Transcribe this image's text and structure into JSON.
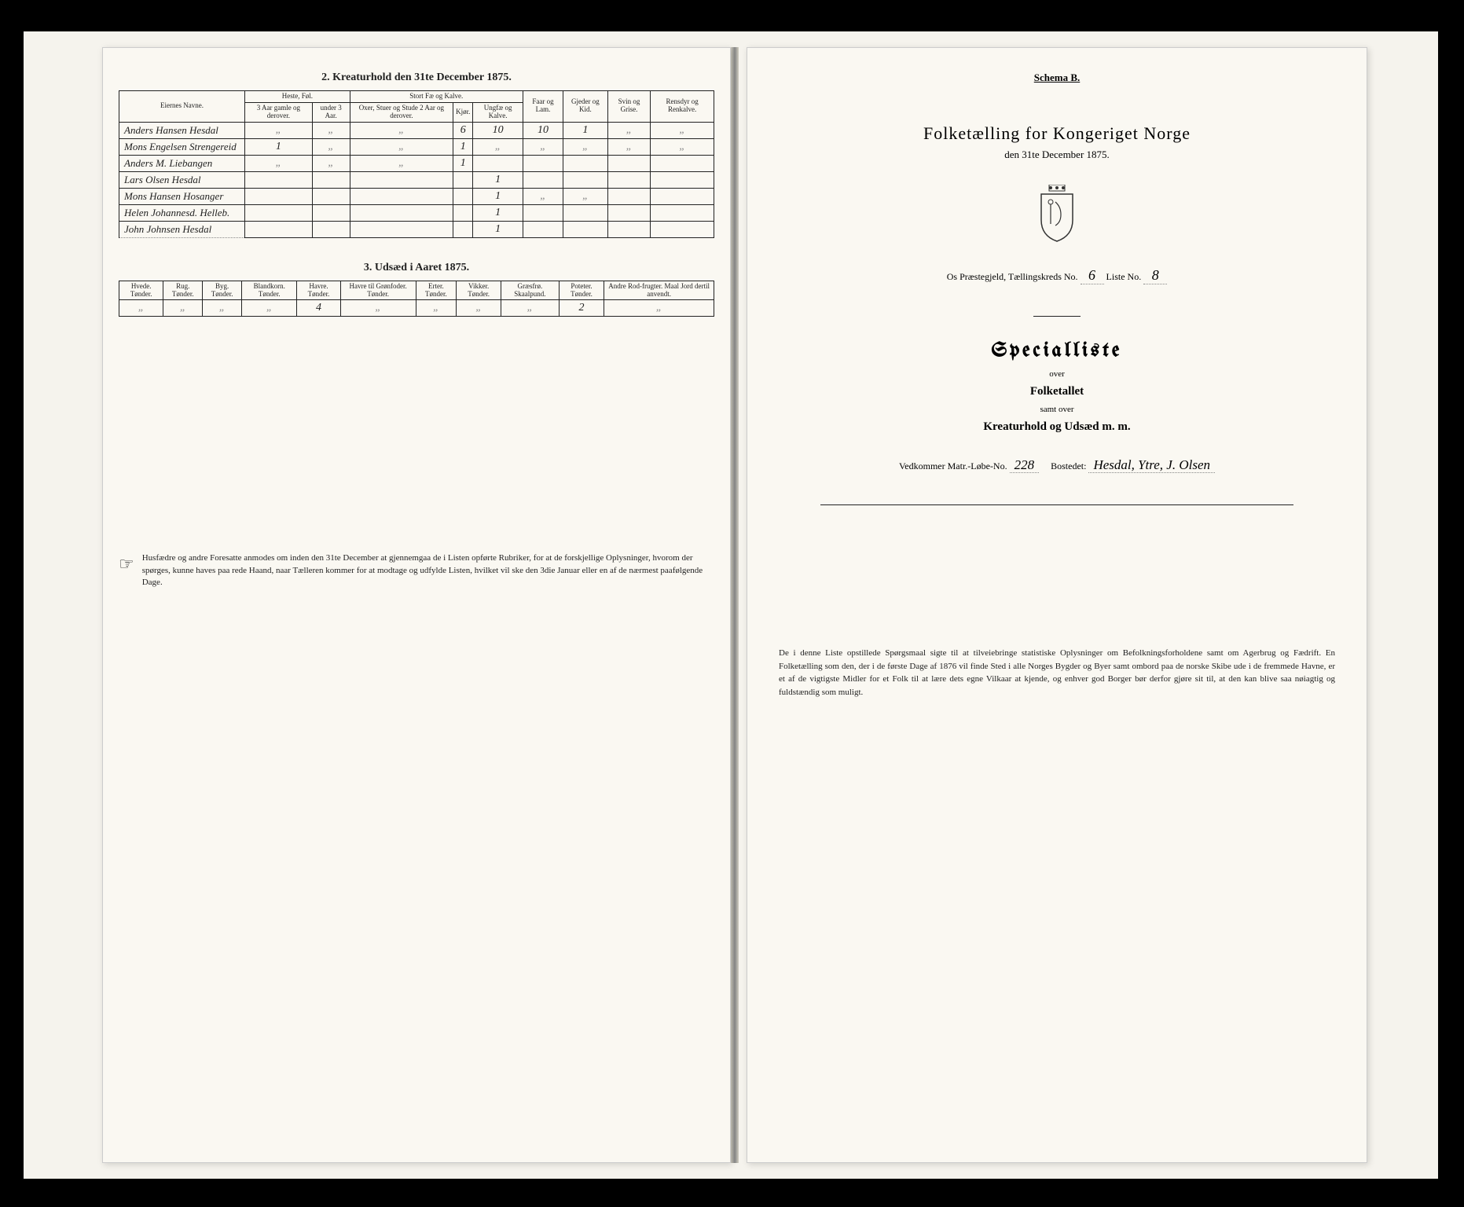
{
  "left": {
    "section2_title": "2. Kreaturhold den 31te December 1875.",
    "table2": {
      "headers": {
        "name": "Eiernes Navne.",
        "group_heste": "Heste, Føl.",
        "heste_a": "3 Aar gamle og derover.",
        "heste_b": "under 3 Aar.",
        "group_fae": "Stort Fæ og Kalve.",
        "fae_a": "Oxer, Stuer og Stude 2 Aar og derover.",
        "fae_b": "Kjør.",
        "fae_c": "Ungfæ og Kalve.",
        "faar": "Faar og Lam.",
        "gjeder": "Gjeder og Kid.",
        "svin": "Svin og Grise.",
        "ren": "Rensdyr og Renkalve."
      },
      "rows": [
        {
          "name": "Anders Hansen Hesdal",
          "h1": "„",
          "h2": "„",
          "f1": "„",
          "f2": "6",
          "f3": "10",
          "faar": "10",
          "gj": "1",
          "sv": "„",
          "ren": "„"
        },
        {
          "name": "Mons Engelsen Strengereid",
          "h1": "1",
          "h2": "„",
          "f1": "„",
          "f2": "1",
          "f3": "„",
          "faar": "„",
          "gj": "„",
          "sv": "„",
          "ren": "„"
        },
        {
          "name": "Anders M. Liebangen",
          "h1": "„",
          "h2": "„",
          "f1": "„",
          "f2": "1",
          "f3": "",
          "faar": "",
          "gj": "",
          "sv": "",
          "ren": ""
        },
        {
          "name": "Lars Olsen Hesdal",
          "h1": "",
          "h2": "",
          "f1": "",
          "f2": "",
          "f3": "1",
          "faar": "",
          "gj": "",
          "sv": "",
          "ren": ""
        },
        {
          "name": "Mons Hansen Hosanger",
          "h1": "",
          "h2": "",
          "f1": "",
          "f2": "",
          "f3": "1",
          "faar": "„",
          "gj": "„",
          "sv": "",
          "ren": ""
        },
        {
          "name": "Helen Johannesd. Helleb.",
          "h1": "",
          "h2": "",
          "f1": "",
          "f2": "",
          "f3": "1",
          "faar": "",
          "gj": "",
          "sv": "",
          "ren": ""
        },
        {
          "name": "John Johnsen Hesdal",
          "h1": "",
          "h2": "",
          "f1": "",
          "f2": "",
          "f3": "1",
          "faar": "",
          "gj": "",
          "sv": "",
          "ren": ""
        }
      ]
    },
    "section3_title": "3. Udsæd i Aaret 1875.",
    "table3": {
      "headers": [
        "Hvede. Tønder.",
        "Rug. Tønder.",
        "Byg. Tønder.",
        "Blandkorn. Tønder.",
        "Havre. Tønder.",
        "Havre til Grønfoder. Tønder.",
        "Erter. Tønder.",
        "Vikker. Tønder.",
        "Græsfrø. Skaalpund.",
        "Poteter. Tønder.",
        "Andre Rod-frugter. Maal Jord dertil anvendt."
      ],
      "row": [
        "„",
        "„",
        "„",
        "„",
        "4",
        "„",
        "„",
        "„",
        "„",
        "2",
        "„"
      ]
    },
    "footer": "Husfædre og andre Foresatte anmodes om inden den 31te December at gjennemgaa de i Listen opførte Rubriker, for at de forskjellige Oplysninger, hvorom der spørges, kunne haves paa rede Haand, naar Tælleren kommer for at modtage og udfylde Listen, hvilket vil ske den 3die Januar eller en af de nærmest paafølgende Dage."
  },
  "right": {
    "schema": "Schema B.",
    "title": "Folketælling for Kongeriget Norge",
    "date": "den 31te December 1875.",
    "line_prefix": "Os Præstegjeld, Tællingskreds No.",
    "kreds_no": "6",
    "liste_label": "Liste No.",
    "liste_no": "8",
    "spec_title": "Specialliste",
    "over": "over",
    "folketallet": "Folketallet",
    "samt": "samt over",
    "kreatur": "Kreaturhold og Udsæd m. m.",
    "matr_label": "Vedkommer Matr.-Løbe-No.",
    "matr_no": "228",
    "bosted_label": "Bostedet:",
    "bosted": "Hesdal, Ytre, J. Olsen",
    "footer": "De i denne Liste opstillede Spørgsmaal sigte til at tilveiebringe statistiske Oplysninger om Befolkningsforholdene samt om Agerbrug og Fædrift. En Folketælling som den, der i de første Dage af 1876 vil finde Sted i alle Norges Bygder og Byer samt ombord paa de norske Skibe ude i de fremmede Havne, er et af de vigtigste Midler for et Folk til at lære dets egne Vilkaar at kjende, og enhver god Borger bør derfor gjøre sit til, at den kan blive saa nøiagtig og fuldstændig som muligt."
  }
}
